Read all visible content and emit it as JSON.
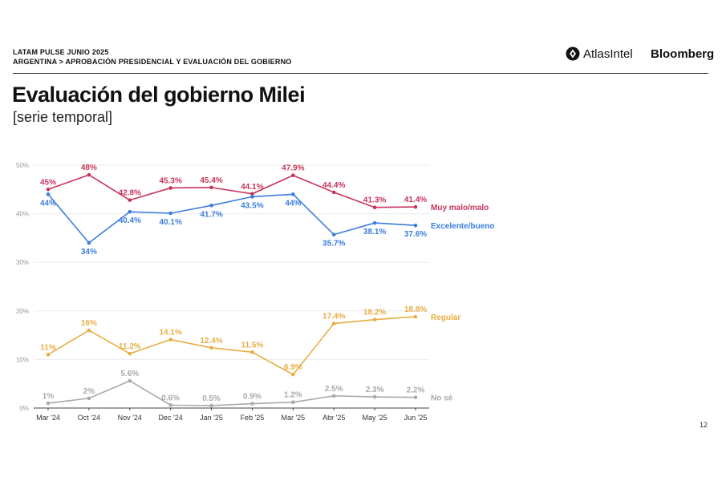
{
  "header": {
    "line1": "LATAM PULSE JUNIO 2025",
    "line2": "ARGENTINA > APROBACIÓN PRESIDENCIAL Y EVALUACIÓN DEL GOBIERNO",
    "brand_atlas": "AtlasIntel",
    "brand_bloomberg": "Bloomberg"
  },
  "title": "Evaluación del gobierno Milei",
  "subtitle": "[serie temporal]",
  "page_number": "12",
  "chart_data": {
    "type": "line",
    "categories": [
      "Mar '24",
      "Oct '24",
      "Nov '24",
      "Dec '24",
      "Jan '25",
      "Feb '25",
      "Mar '25",
      "Abr '25",
      "May '25",
      "Jun '25"
    ],
    "y_ticks": [
      "0%",
      "10%",
      "20%",
      "30%",
      "40%",
      "50%"
    ],
    "ylim": [
      0,
      50
    ],
    "series": [
      {
        "name": "Muy malo/malo",
        "color": "#c8345a",
        "values": [
          45,
          48,
          42.8,
          45.3,
          45.4,
          44.1,
          47.9,
          44.4,
          41.3,
          41.4
        ],
        "labels": [
          "45%",
          "48%",
          "42.8%",
          "45.3%",
          "45.4%",
          "44.1%",
          "47.9%",
          "44.4%",
          "41.3%",
          "41.4%"
        ]
      },
      {
        "name": "Excelente/bueno",
        "color": "#3b7ddd",
        "values": [
          44,
          34,
          40.4,
          40.1,
          41.7,
          43.5,
          44,
          35.7,
          38.1,
          37.6
        ],
        "labels": [
          "44%",
          "34%",
          "40.4%",
          "40.1%",
          "41.7%",
          "43.5%",
          "44%",
          "35.7%",
          "38.1%",
          "37.6%"
        ]
      },
      {
        "name": "Regular",
        "color": "#e8ae45",
        "values": [
          11,
          16,
          11.2,
          14.1,
          12.4,
          11.5,
          6.9,
          17.4,
          18.2,
          18.8
        ],
        "labels": [
          "11%",
          "16%",
          "11.2%",
          "14.1%",
          "12.4%",
          "11.5%",
          "6.9%",
          "17.4%",
          "18.2%",
          "18.8%"
        ]
      },
      {
        "name": "No sé",
        "color": "#aaaaaa",
        "values": [
          1,
          2,
          5.6,
          0.6,
          0.5,
          0.9,
          1.2,
          2.5,
          2.3,
          2.2
        ],
        "labels": [
          "1%",
          "2%",
          "5.6%",
          "0.6%",
          "0.5%",
          "0.9%",
          "1.2%",
          "2.5%",
          "2.3%",
          "2.2%"
        ]
      }
    ]
  }
}
